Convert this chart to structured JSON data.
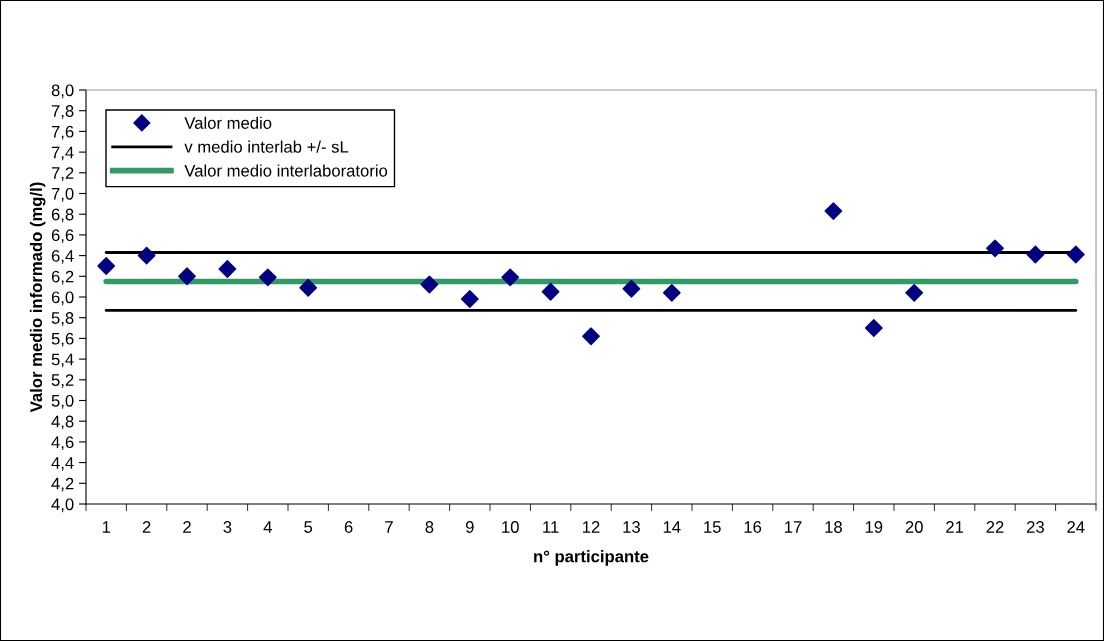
{
  "chart_data": {
    "type": "scatter",
    "xlabel": "n° participante",
    "ylabel": "Valor medio informado (mg/l)",
    "categories": [
      "1",
      "2",
      "2",
      "3",
      "4",
      "5",
      "6",
      "7",
      "8",
      "9",
      "10",
      "11",
      "12",
      "13",
      "14",
      "15",
      "16",
      "17",
      "18",
      "19",
      "20",
      "21",
      "22",
      "23",
      "24"
    ],
    "series": [
      {
        "name": "Valor medio",
        "color": "#000080",
        "values": [
          6.3,
          6.4,
          6.2,
          6.27,
          6.19,
          6.09,
          null,
          null,
          6.12,
          5.98,
          6.19,
          6.05,
          5.62,
          6.08,
          6.04,
          null,
          null,
          null,
          6.83,
          5.7,
          6.04,
          null,
          6.47,
          6.41,
          6.41
        ]
      }
    ],
    "marker": "diamond",
    "ref_lines": [
      {
        "axis": "y",
        "value": 6.43,
        "label": "v medio interlab +/- sL",
        "color": "#000000"
      },
      {
        "axis": "y",
        "value": 5.87,
        "color": "#000000"
      },
      {
        "axis": "y",
        "value": 6.15,
        "label": "Valor medio interlaboratorio",
        "color": "#339966"
      }
    ],
    "ylim": [
      4.0,
      8.0
    ],
    "yticks": [
      {
        "value": 4.0,
        "label": "4,0"
      },
      {
        "value": 4.2,
        "label": "4,2"
      },
      {
        "value": 4.4,
        "label": "4,4"
      },
      {
        "value": 4.6,
        "label": "4,6"
      },
      {
        "value": 4.8,
        "label": "4,8"
      },
      {
        "value": 5.0,
        "label": "5,0"
      },
      {
        "value": 5.2,
        "label": "5,2"
      },
      {
        "value": 5.4,
        "label": "5,4"
      },
      {
        "value": 5.6,
        "label": "5,6"
      },
      {
        "value": 5.8,
        "label": "5,8"
      },
      {
        "value": 6.0,
        "label": "6,0"
      },
      {
        "value": 6.2,
        "label": "6,2"
      },
      {
        "value": 6.4,
        "label": "6,4"
      },
      {
        "value": 6.6,
        "label": "6,6"
      },
      {
        "value": 6.8,
        "label": "6,8"
      },
      {
        "value": 7.0,
        "label": "7,0"
      },
      {
        "value": 7.2,
        "label": "7,2"
      },
      {
        "value": 7.4,
        "label": "7,4"
      },
      {
        "value": 7.6,
        "label": "7,6"
      },
      {
        "value": 7.8,
        "label": "7,8"
      },
      {
        "value": 8.0,
        "label": "8,0"
      }
    ],
    "grid": false,
    "legend": "top left"
  }
}
